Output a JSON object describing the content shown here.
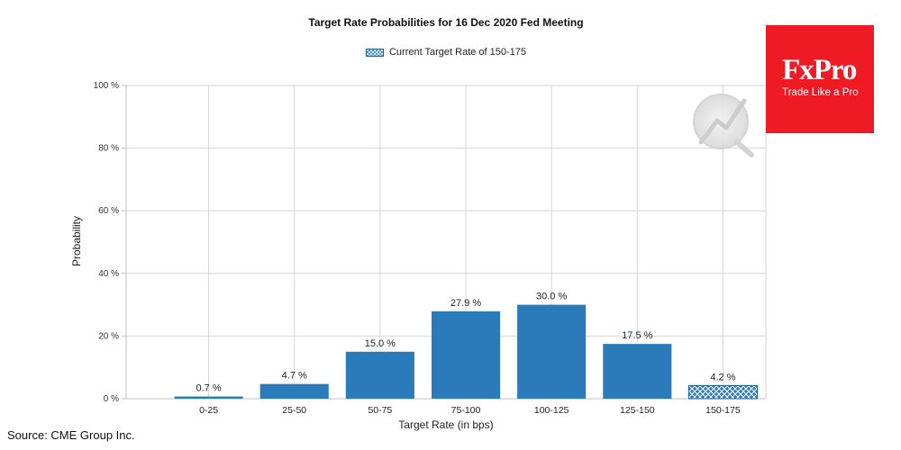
{
  "chart_data": {
    "type": "bar",
    "title": "Target Rate Probabilities for 16 Dec 2020 Fed Meeting",
    "xlabel": "Target Rate (in bps)",
    "ylabel": "Probability",
    "categories": [
      "0-25",
      "25-50",
      "50-75",
      "75-100",
      "100-125",
      "125-150",
      "150-175"
    ],
    "values": [
      0.7,
      4.7,
      15.0,
      27.9,
      30.0,
      17.5,
      4.2
    ],
    "data_labels": [
      "0.7 %",
      "4.7 %",
      "15.0 %",
      "27.9 %",
      "30.0 %",
      "17.5 %",
      "4.2 %"
    ],
    "ylim": [
      0,
      100
    ],
    "yticks": [
      0,
      20,
      40,
      60,
      80,
      100
    ],
    "ytick_labels": [
      "0 %",
      "20 %",
      "40 %",
      "60 %",
      "80 %",
      "100 %"
    ],
    "highlight_index": 6,
    "legend": {
      "label": "Current Target Rate of 150-175",
      "placement": "top-center"
    },
    "grid": true,
    "colors": {
      "bar": "#2b7bba",
      "highlight": "#2b7bba",
      "grid": "#d6d6d6",
      "axis": "#bfbfbf"
    }
  },
  "logo": {
    "name": "FxPro",
    "tagline": "Trade Like a Pro"
  },
  "source": "Source: CME Group Inc."
}
